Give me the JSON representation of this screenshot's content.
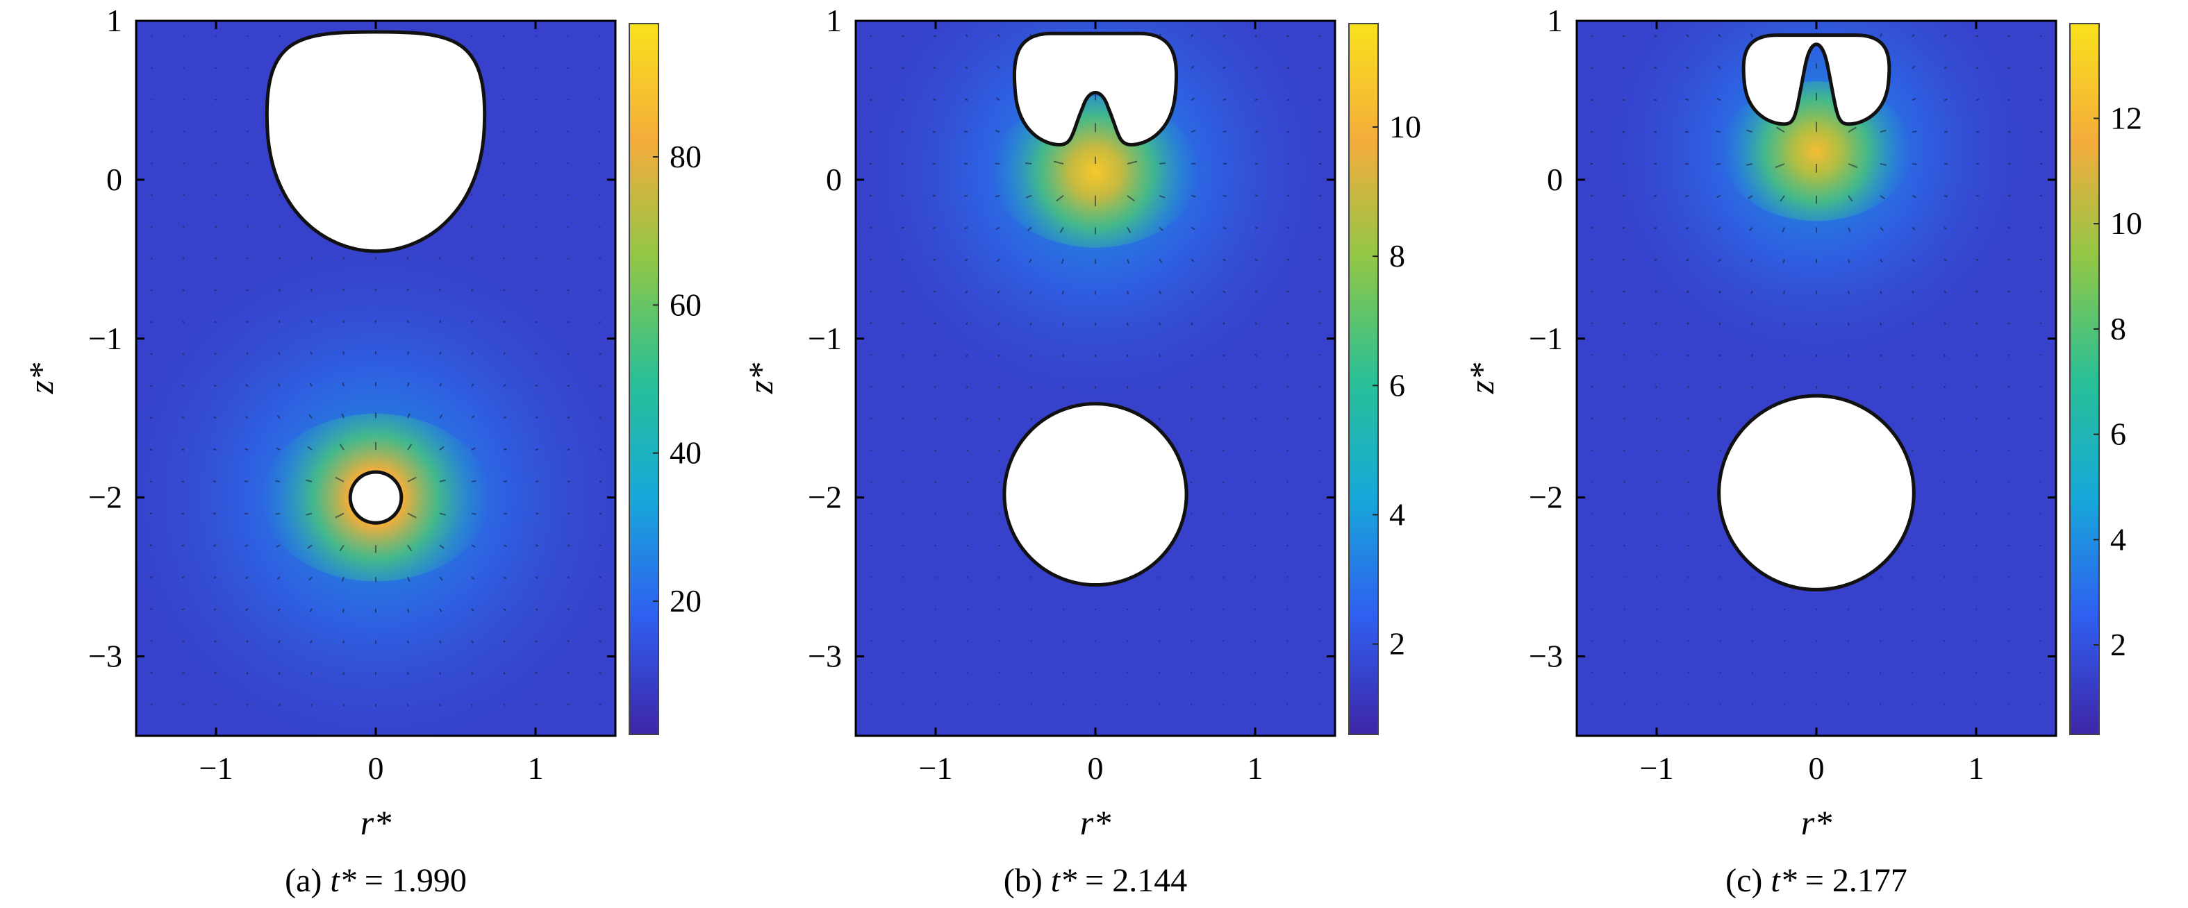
{
  "figure": {
    "panels": [
      {
        "id": "a",
        "caption_prefix": "(a) ",
        "caption_var": "t*",
        "caption_eq": " = ",
        "caption_value": "1.990"
      },
      {
        "id": "b",
        "caption_prefix": "(b) ",
        "caption_var": "t*",
        "caption_eq": " = ",
        "caption_value": "2.144"
      },
      {
        "id": "c",
        "caption_prefix": "(c) ",
        "caption_var": "t*",
        "caption_eq": " = ",
        "caption_value": "2.177"
      }
    ]
  },
  "chart_data": [
    {
      "type": "heatmap",
      "title": "",
      "xlabel": "r*",
      "ylabel": "z*",
      "xlim": [
        -1.5,
        1.5
      ],
      "ylim": [
        -3.5,
        1.0
      ],
      "x_ticks": [
        -1,
        0,
        1
      ],
      "y_ticks": [
        1,
        0,
        -1,
        -2,
        -3
      ],
      "x_tick_labels": [
        "−1",
        "0",
        "1"
      ],
      "y_tick_labels": [
        "1",
        "0",
        "−1",
        "−2",
        "−3"
      ],
      "colorbar": {
        "range": [
          2,
          98
        ],
        "ticks": [
          20,
          40,
          60,
          80
        ],
        "tick_labels": [
          "20",
          "40",
          "60",
          "80"
        ]
      },
      "colormap": [
        "#3e26a8",
        "#2f5ff0",
        "#17a8d9",
        "#29c095",
        "#8fc747",
        "#f4ac3c",
        "#f9e11c"
      ],
      "field_peaks": [
        {
          "r": 0.0,
          "z": -2.0,
          "sigma": 0.42,
          "amplitude": 1.0
        }
      ],
      "bubbles": [
        {
          "name": "upper bubble",
          "shape": "drop",
          "r_center": 0.0,
          "z_top": 0.93,
          "z_bottom": -0.45,
          "r_max": 0.68
        },
        {
          "name": "lower bubble",
          "shape": "circle",
          "r_center": 0.0,
          "z_center": -2.0,
          "radius": 0.16
        }
      ],
      "grid": false,
      "legend": "colorbar-right"
    },
    {
      "type": "heatmap",
      "title": "",
      "xlabel": "r*",
      "ylabel": "z*",
      "xlim": [
        -1.5,
        1.5
      ],
      "ylim": [
        -3.5,
        1.0
      ],
      "x_ticks": [
        -1,
        0,
        1
      ],
      "y_ticks": [
        1,
        0,
        -1,
        -2,
        -3
      ],
      "x_tick_labels": [
        "−1",
        "0",
        "1"
      ],
      "y_tick_labels": [
        "1",
        "0",
        "−1",
        "−2",
        "−3"
      ],
      "colorbar": {
        "range": [
          0.6,
          11.6
        ],
        "ticks": [
          2,
          4,
          6,
          8,
          10
        ],
        "tick_labels": [
          "2",
          "4",
          "6",
          "8",
          "10"
        ]
      },
      "colormap": [
        "#3e26a8",
        "#2f5ff0",
        "#17a8d9",
        "#29c095",
        "#8fc747",
        "#f4ac3c",
        "#f9e11c"
      ],
      "field_peaks": [
        {
          "r": 0.0,
          "z": 0.05,
          "sigma": 0.38,
          "amplitude": 0.92
        }
      ],
      "bubbles": [
        {
          "name": "upper bubble",
          "shape": "toroidal",
          "r_center": 0.0,
          "z_top": 0.92,
          "z_bottom": 0.22,
          "r_max": 0.5,
          "jet_tip_z": 0.58
        },
        {
          "name": "lower bubble",
          "shape": "circle",
          "r_center": 0.0,
          "z_center": -1.98,
          "radius": 0.57
        }
      ],
      "grid": false,
      "legend": "colorbar-right"
    },
    {
      "type": "heatmap",
      "title": "",
      "xlabel": "r*",
      "ylabel": "z*",
      "xlim": [
        -1.5,
        1.5
      ],
      "ylim": [
        -3.5,
        1.0
      ],
      "x_ticks": [
        -1,
        0,
        1
      ],
      "y_ticks": [
        1,
        0,
        -1,
        -2,
        -3
      ],
      "x_tick_labels": [
        "−1",
        "0",
        "1"
      ],
      "y_tick_labels": [
        "1",
        "0",
        "−1",
        "−2",
        "−3"
      ],
      "colorbar": {
        "range": [
          0.3,
          13.8
        ],
        "ticks": [
          2,
          4,
          6,
          8,
          10,
          12
        ],
        "tick_labels": [
          "2",
          "4",
          "6",
          "8",
          "10",
          "12"
        ]
      },
      "colormap": [
        "#3e26a8",
        "#2f5ff0",
        "#17a8d9",
        "#29c095",
        "#8fc747",
        "#f4ac3c",
        "#f9e11c"
      ],
      "field_peaks": [
        {
          "r": 0.0,
          "z": 0.18,
          "sigma": 0.35,
          "amplitude": 0.88
        }
      ],
      "bubbles": [
        {
          "name": "upper bubble",
          "shape": "toroidal",
          "r_center": 0.0,
          "z_top": 0.91,
          "z_bottom": 0.35,
          "r_max": 0.45,
          "jet_tip_z": 0.9
        },
        {
          "name": "lower bubble",
          "shape": "circle",
          "r_center": 0.0,
          "z_center": -1.97,
          "radius": 0.61
        }
      ],
      "grid": false,
      "legend": "colorbar-right"
    }
  ]
}
